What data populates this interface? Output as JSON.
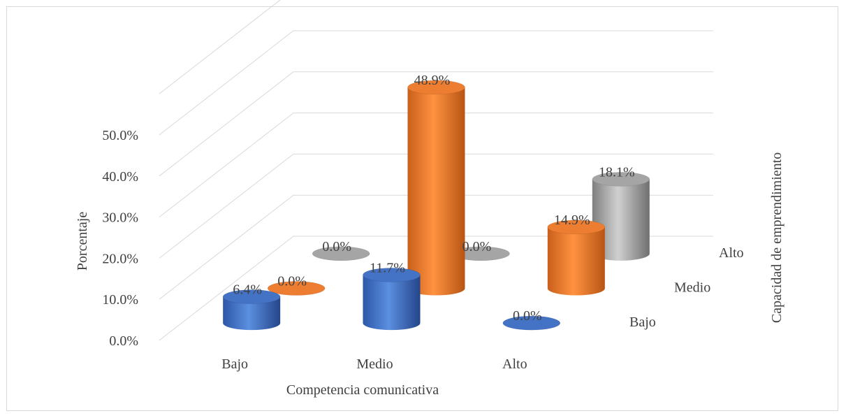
{
  "chart_data": {
    "type": "bar",
    "subtype": "3d-cylinder",
    "title": "",
    "xlabel": "Competencia comunicativa",
    "ylabel": "Porcentaje",
    "zlabel": "Capacidad de emprendimiento",
    "categories": [
      "Bajo",
      "Medio",
      "Alto"
    ],
    "y_ticks": [
      "0.0%",
      "10.0%",
      "20.0%",
      "30.0%",
      "40.0%",
      "50.0%"
    ],
    "ylim": [
      0,
      50
    ],
    "grid": true,
    "legend": "none",
    "series": [
      {
        "name": "Bajo",
        "values": [
          6.4,
          11.7,
          0.0
        ],
        "labels": [
          "6.4%",
          "11.7%",
          "0.0%"
        ],
        "color": "#4472c4"
      },
      {
        "name": "Medio",
        "values": [
          0.0,
          48.9,
          14.9
        ],
        "labels": [
          "0.0%",
          "48.9%",
          "14.9%"
        ],
        "color": "#ed7d31"
      },
      {
        "name": "Alto",
        "values": [
          0.0,
          0.0,
          18.1
        ],
        "labels": [
          "0.0%",
          "0.0%",
          "18.1%"
        ],
        "color": "#a5a5a5"
      }
    ]
  }
}
